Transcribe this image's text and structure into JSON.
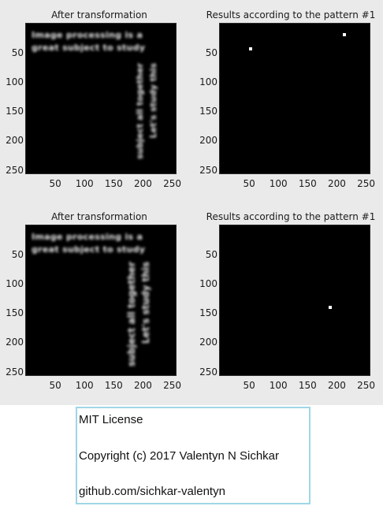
{
  "panels": [
    {
      "title": "After transformation",
      "kind": "text",
      "yticks": [
        "50",
        "100",
        "150",
        "200",
        "250"
      ],
      "xticks": [
        "50",
        "100",
        "150",
        "200",
        "250"
      ],
      "horizontal_text": [
        "Image processing is a",
        "great subject to study"
      ],
      "vertical_text_1": "Let's study this",
      "vertical_text_2": "subject all together"
    },
    {
      "title": "Results according to the pattern #1",
      "kind": "dots",
      "yticks": [
        "50",
        "100",
        "150",
        "200",
        "250"
      ],
      "xticks": [
        "50",
        "100",
        "150",
        "200",
        "250"
      ],
      "detections": [
        {
          "x": 52,
          "y": 43
        },
        {
          "x": 213,
          "y": 19
        }
      ]
    },
    {
      "title": "After transformation",
      "kind": "text",
      "yticks": [
        "50",
        "100",
        "150",
        "200",
        "250"
      ],
      "xticks": [
        "50",
        "100",
        "150",
        "200",
        "250"
      ],
      "horizontal_text": [
        "Image processing is a",
        "great subject to study"
      ],
      "vertical_text_1": "Let's study this",
      "vertical_text_2": "subject all together"
    },
    {
      "title": "Results according to the pattern #1",
      "kind": "dots",
      "yticks": [
        "50",
        "100",
        "150",
        "200",
        "250"
      ],
      "xticks": [
        "50",
        "100",
        "150",
        "200",
        "250"
      ],
      "detections": [
        {
          "x": 188,
          "y": 140
        }
      ]
    }
  ],
  "license": {
    "line1": "MIT License",
    "line2": "Copyright (c) 2017 Valentyn N Sichkar",
    "line3": "github.com/sichkar-valentyn"
  }
}
